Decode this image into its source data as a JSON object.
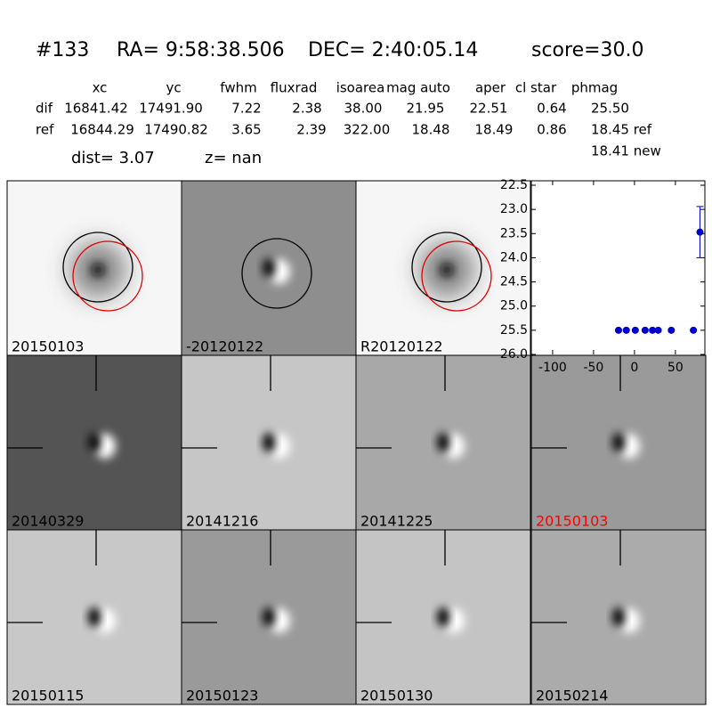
{
  "header": {
    "id": "#133",
    "ra": "RA= 9:58:38.506",
    "dec": "DEC= 2:40:05.14",
    "score": "score=30.0"
  },
  "table": {
    "columns": [
      "xc",
      "yc",
      "fwhm",
      "fluxrad",
      "isoarea",
      "mag auto",
      "aper",
      "cl star",
      "phmag"
    ],
    "rows": [
      {
        "name": "dif",
        "cells": [
          "16841.42",
          "17491.90",
          "7.22",
          "2.38",
          "38.00",
          "21.95",
          "22.51",
          "0.64",
          "25.50"
        ]
      },
      {
        "name": "ref",
        "cells": [
          "16844.29",
          "17490.82",
          "3.65",
          "2.39",
          "322.00",
          "18.48",
          "18.49",
          "0.86",
          "18.45 ref"
        ]
      }
    ],
    "extra": "18.41 new"
  },
  "dist": "dist=  3.07",
  "z": "z=   nan",
  "stamps": [
    {
      "label": "20150103",
      "label_color": "#000000",
      "background": "#f6f6f6"
    },
    {
      "label": "-20120122",
      "label_color": "#000000",
      "background": "#8e8e8e"
    },
    {
      "label": "R20120122",
      "label_color": "#000000",
      "background": "#f6f6f6"
    },
    {
      "label": "20140329",
      "label_color": "#000000",
      "background": "#545454"
    },
    {
      "label": "20141216",
      "label_color": "#000000",
      "background": "#c6c6c6"
    },
    {
      "label": "20141225",
      "label_color": "#000000",
      "background": "#a8a8a8"
    },
    {
      "label": "20150103",
      "label_color": "#ff0000",
      "background": "#9a9a9a"
    },
    {
      "label": "20150115",
      "label_color": "#000000",
      "background": "#c8c8c8"
    },
    {
      "label": "20150123",
      "label_color": "#000000",
      "background": "#9a9a9a"
    },
    {
      "label": "20150130",
      "label_color": "#000000",
      "background": "#c4c4c4"
    },
    {
      "label": "20150214",
      "label_color": "#000000",
      "background": "#ababab"
    }
  ],
  "chart_data": {
    "type": "scatter",
    "x": [
      -19.5,
      -10,
      1,
      13,
      22,
      29,
      45,
      72,
      80
    ],
    "values": [
      25.5,
      25.5,
      25.5,
      25.5,
      25.5,
      25.5,
      25.5,
      25.5,
      23.47
    ],
    "errors": [
      0,
      0,
      0,
      0,
      0,
      0,
      0,
      0,
      0.53
    ],
    "color": "#0000cc",
    "xlim": [
      -126,
      86
    ],
    "ylim": [
      22.5,
      26.0
    ],
    "y_inverted": true,
    "xticks": [
      -100,
      -50,
      0,
      50
    ],
    "yticks": [
      22.5,
      {
        "value": 23,
        "label": "23.0"
      },
      23.5,
      {
        "value": 24,
        "label": "24.0"
      },
      24.5,
      {
        "value": 25,
        "label": "25.0"
      },
      25.5,
      {
        "value": 26,
        "label": "26.0"
      }
    ]
  }
}
